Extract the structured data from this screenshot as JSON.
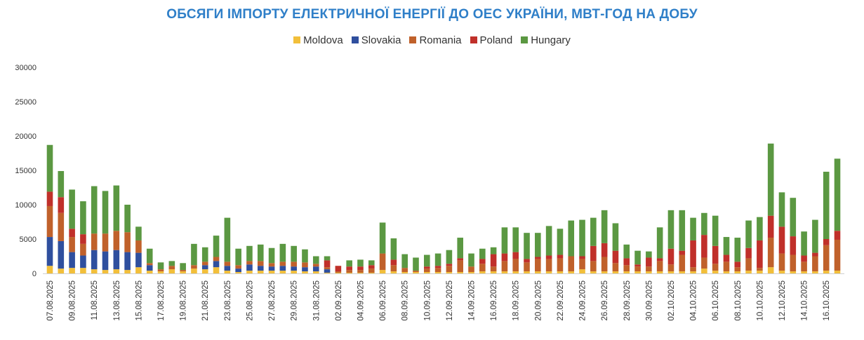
{
  "chart_data": {
    "type": "bar",
    "stacked": true,
    "title": "ОБСЯГИ ІМПОРТУ ЕЛЕКТРИЧНОЇ ЕНЕРГІЇ ДО ОЕС УКРАЇНИ, МВТ-ГОД НА ДОБУ",
    "legend_position": "top",
    "grid": false,
    "ylim": [
      0,
      30000
    ],
    "yticks": [
      0,
      5000,
      10000,
      15000,
      20000,
      25000,
      30000
    ],
    "categories": [
      "07.08.2025",
      "08.08.2025",
      "09.08.2025",
      "10.08.2025",
      "11.08.2025",
      "12.08.2025",
      "13.08.2025",
      "14.08.2025",
      "15.08.2025",
      "16.08.2025",
      "17.08.2025",
      "18.08.2025",
      "19.08.2025",
      "20.08.2025",
      "21.08.2025",
      "22.08.2025",
      "23.08.2025",
      "24.08.2025",
      "25.08.2025",
      "26.08.2025",
      "27.08.2025",
      "28.08.2025",
      "29.08.2025",
      "30.08.2025",
      "31.08.2025",
      "01.09.2025",
      "02.09.2025",
      "03.09.2025",
      "04.09.2025",
      "05.09.2025",
      "06.09.2025",
      "07.09.2025",
      "08.09.2025",
      "09.09.2025",
      "10.09.2025",
      "11.09.2025",
      "12.09.2025",
      "13.09.2025",
      "14.09.2025",
      "15.09.2025",
      "16.09.2025",
      "17.09.2025",
      "18.09.2025",
      "19.09.2025",
      "20.09.2025",
      "21.09.2025",
      "22.09.2025",
      "23.09.2025",
      "24.09.2025",
      "25.09.2025",
      "26.09.2025",
      "27.09.2025",
      "28.09.2025",
      "29.09.2025",
      "30.09.2025",
      "01.10.2025",
      "02.10.2025",
      "03.10.2025",
      "04.10.2025",
      "05.10.2025",
      "06.10.2025",
      "07.10.2025",
      "08.10.2025",
      "09.10.2025",
      "10.10.2025",
      "11.10.2025",
      "12.10.2025",
      "13.10.2025",
      "14.10.2025",
      "15.10.2025",
      "16.10.2025",
      "17.10.2025"
    ],
    "xtick_labels": [
      "07.08.2025",
      "09.08.2025",
      "11.08.2025",
      "13.08.2025",
      "15.08.2025",
      "17.08.2025",
      "19.08.2025",
      "21.08.2025",
      "23.08.2025",
      "25.08.2025",
      "27.08.2025",
      "29.08.2025",
      "31.08.2025",
      "02.09.2025",
      "04.09.2025",
      "06.09.2025",
      "08.09.2025",
      "10.09.2025",
      "12.09.2025",
      "14.09.2025",
      "16.09.2025",
      "18.09.2025",
      "20.09.2025",
      "22.09.2025",
      "24.09.2025",
      "26.09.2025",
      "28.09.2025",
      "30.09.2025",
      "02.10.2025",
      "04.10.2025",
      "06.10.2025",
      "08.10.2025",
      "10.10.2025",
      "12.10.2025",
      "14.10.2025",
      "16.10.2025"
    ],
    "series": [
      {
        "name": "Moldova",
        "color": "#F2BF3A",
        "values": [
          1100,
          700,
          800,
          800,
          600,
          500,
          600,
          500,
          900,
          400,
          300,
          600,
          300,
          700,
          600,
          900,
          400,
          200,
          400,
          400,
          400,
          400,
          400,
          300,
          300,
          100,
          100,
          100,
          100,
          100,
          500,
          300,
          200,
          200,
          200,
          200,
          200,
          200,
          200,
          300,
          300,
          300,
          300,
          300,
          300,
          300,
          300,
          300,
          600,
          300,
          300,
          300,
          300,
          300,
          300,
          300,
          300,
          300,
          300,
          700,
          400,
          300,
          300,
          400,
          400,
          900,
          400,
          300,
          300,
          300,
          400,
          400
        ]
      },
      {
        "name": "Slovakia",
        "color": "#2F4F9E",
        "values": [
          4200,
          4000,
          2300,
          1800,
          2800,
          2700,
          2800,
          2600,
          2100,
          800,
          0,
          0,
          0,
          0,
          600,
          900,
          700,
          500,
          900,
          700,
          600,
          700,
          600,
          600,
          700,
          500,
          0,
          0,
          0,
          0,
          0,
          0,
          0,
          0,
          0,
          0,
          0,
          0,
          0,
          0,
          0,
          0,
          0,
          0,
          0,
          0,
          0,
          0,
          0,
          0,
          0,
          0,
          0,
          0,
          0,
          0,
          0,
          0,
          0,
          0,
          0,
          0,
          0,
          0,
          0,
          0,
          0,
          0,
          0,
          0,
          0,
          0
        ]
      },
      {
        "name": "Romania",
        "color": "#C0612B",
        "values": [
          4500,
          4100,
          2200,
          1700,
          2400,
          2600,
          2800,
          2900,
          1800,
          300,
          300,
          500,
          200,
          500,
          500,
          600,
          600,
          500,
          500,
          700,
          500,
          600,
          700,
          700,
          400,
          300,
          200,
          400,
          400,
          600,
          2400,
          900,
          600,
          200,
          500,
          600,
          900,
          1700,
          800,
          1100,
          700,
          1500,
          1800,
          1300,
          1800,
          1800,
          1900,
          2200,
          1500,
          1500,
          2100,
          1200,
          900,
          700,
          700,
          1500,
          1000,
          2400,
          600,
          1600,
          1000,
          1400,
          600,
          1800,
          400,
          4300,
          2500,
          2400,
          1400,
          2200,
          3700,
          4500
        ]
      },
      {
        "name": "Poland",
        "color": "#C0302A",
        "values": [
          2100,
          2300,
          1200,
          1400,
          0,
          0,
          0,
          0,
          0,
          0,
          0,
          0,
          0,
          0,
          0,
          0,
          0,
          0,
          0,
          0,
          0,
          0,
          0,
          0,
          0,
          1000,
          800,
          500,
          500,
          500,
          0,
          800,
          0,
          0,
          300,
          300,
          300,
          300,
          0,
          700,
          1800,
          1100,
          1000,
          500,
          300,
          500,
          500,
          0,
          400,
          2200,
          2000,
          1800,
          1000,
          300,
          1300,
          400,
          2300,
          600,
          3900,
          3300,
          2600,
          1000,
          800,
          1500,
          4000,
          3200,
          3900,
          2700,
          900,
          500,
          900,
          1300
        ]
      },
      {
        "name": "Hungary",
        "color": "#5B9842",
        "values": [
          6800,
          3800,
          5700,
          4800,
          6900,
          6200,
          6600,
          4000,
          2000,
          2100,
          1000,
          700,
          1000,
          3100,
          2100,
          3100,
          6400,
          2400,
          2200,
          2400,
          2200,
          2600,
          2300,
          1900,
          1100,
          600,
          0,
          900,
          1000,
          700,
          4500,
          3100,
          2000,
          1900,
          1700,
          1800,
          2000,
          3000,
          1900,
          1500,
          1000,
          3800,
          3600,
          3800,
          3500,
          4300,
          3800,
          5200,
          5300,
          4100,
          4800,
          4000,
          2000,
          2000,
          900,
          4500,
          5600,
          5900,
          3300,
          3200,
          4400,
          2600,
          3500,
          4000,
          3400,
          10500,
          5000,
          5600,
          3500,
          4800,
          9800,
          10500
        ]
      }
    ]
  }
}
